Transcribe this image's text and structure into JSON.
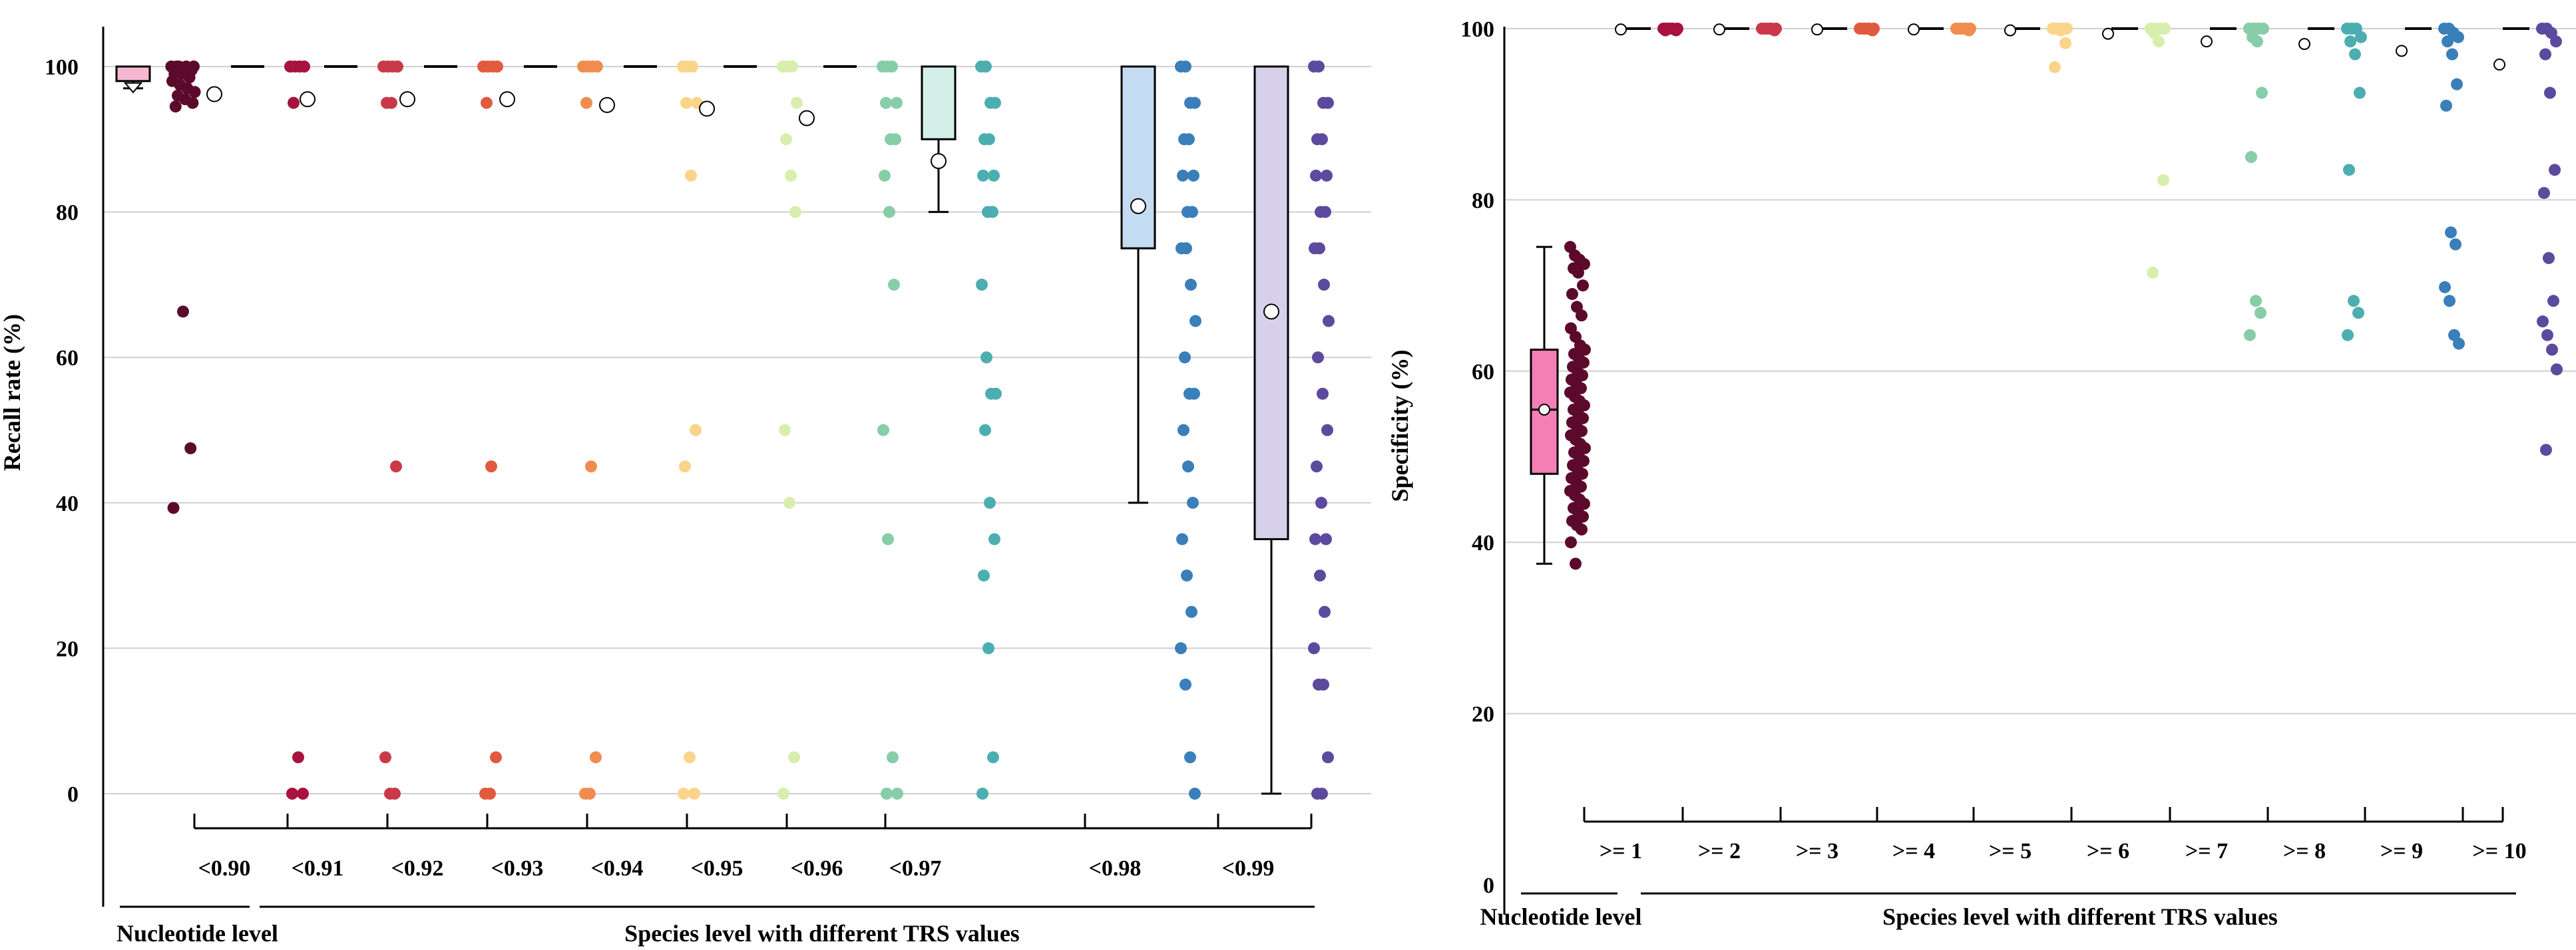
{
  "chart_data": [
    {
      "type": "box",
      "ylabel": "Recall rate (%)",
      "ylim": [
        -15,
        105
      ],
      "yticks": [
        0,
        20,
        40,
        60,
        80,
        100
      ],
      "grid": true,
      "group_labels": [
        "Nucleotide level",
        "Species level with different TRS values"
      ],
      "categories": [
        "Nucleotide level",
        "<0.90",
        "<0.91",
        "<0.92",
        "<0.93",
        "<0.94",
        "<0.95",
        "<0.96",
        "<0.97",
        "<0.98",
        "<0.99"
      ],
      "cat_labels": [
        "<0.90",
        "<0.91",
        "<0.92",
        "<0.93",
        "<0.94",
        "<0.95",
        "<0.96",
        "<0.97",
        "<0.98",
        "<0.99"
      ],
      "colors": [
        "#5c0a2b",
        "#a8123e",
        "#c9394a",
        "#e15a3e",
        "#f08c4e",
        "#fbd48a",
        "#d8eeac",
        "#86cda8",
        "#4caeb0",
        "#3a7fba",
        "#5c4a9e"
      ],
      "box_fill": [
        "#f5b8d2",
        "#ffffff",
        "#ffffff",
        "#ffffff",
        "#ffffff",
        "#ffffff",
        "#ffffff",
        "#ffffff",
        "#d3efe8",
        "#c4dcf1",
        "#d6d0ea"
      ],
      "boxes": [
        {
          "q1": 98,
          "median": 100,
          "q3": 100,
          "whisker_low": 97,
          "whisker_high": 100,
          "mean": 99,
          "mean_at_whisker": true
        },
        {
          "q1": 100,
          "median": 100,
          "q3": 100,
          "whisker_low": 100,
          "whisker_high": 100,
          "mean": 96.2
        },
        {
          "q1": 100,
          "median": 100,
          "q3": 100,
          "whisker_low": 100,
          "whisker_high": 100,
          "mean": 95.5
        },
        {
          "q1": 100,
          "median": 100,
          "q3": 100,
          "whisker_low": 100,
          "whisker_high": 100,
          "mean": 95.5
        },
        {
          "q1": 100,
          "median": 100,
          "q3": 100,
          "whisker_low": 100,
          "whisker_high": 100,
          "mean": 95.5
        },
        {
          "q1": 100,
          "median": 100,
          "q3": 100,
          "whisker_low": 100,
          "whisker_high": 100,
          "mean": 94.7
        },
        {
          "q1": 100,
          "median": 100,
          "q3": 100,
          "whisker_low": 100,
          "whisker_high": 100,
          "mean": 94.2
        },
        {
          "q1": 100,
          "median": 100,
          "q3": 100,
          "whisker_low": 100,
          "whisker_high": 100,
          "mean": 92.9
        },
        {
          "q1": 90,
          "median": 100,
          "q3": 100,
          "whisker_low": 80,
          "whisker_high": 100,
          "mean": 87
        },
        {
          "q1": 75,
          "median": 100,
          "q3": 100,
          "whisker_low": 40,
          "whisker_high": 100,
          "mean": 80.8
        },
        {
          "q1": 35,
          "median": 100,
          "q3": 100,
          "whisker_low": 0,
          "whisker_high": 100,
          "mean": 66.3
        }
      ],
      "points": [
        [
          100,
          100,
          100,
          100,
          100,
          99.5,
          99.5,
          99,
          99,
          98.5,
          98,
          97.5,
          97,
          96.5,
          96,
          95.5,
          95,
          94.5,
          66.3,
          47.5,
          39.3
        ],
        [
          100,
          100,
          100,
          100,
          95,
          5,
          0,
          0
        ],
        [
          100,
          100,
          100,
          100,
          95,
          95,
          45,
          5,
          0,
          0
        ],
        [
          100,
          100,
          100,
          100,
          95,
          45,
          5,
          0,
          0
        ],
        [
          100,
          100,
          100,
          100,
          95,
          45,
          5,
          0,
          0
        ],
        [
          100,
          100,
          100,
          95,
          95,
          85,
          50,
          45,
          5,
          0,
          0
        ],
        [
          100,
          100,
          100,
          95,
          90,
          85,
          80,
          50,
          40,
          5,
          0
        ],
        [
          100,
          100,
          100,
          95,
          95,
          90,
          90,
          85,
          80,
          70,
          50,
          35,
          5,
          0,
          0
        ],
        [
          100,
          100,
          95,
          95,
          90,
          90,
          85,
          85,
          80,
          80,
          70,
          60,
          55,
          55,
          50,
          40,
          35,
          30,
          20,
          5,
          0
        ],
        [
          100,
          100,
          95,
          95,
          90,
          90,
          85,
          85,
          80,
          80,
          75,
          75,
          70,
          65,
          60,
          55,
          55,
          50,
          45,
          40,
          35,
          30,
          25,
          20,
          15,
          5,
          0
        ],
        [
          100,
          100,
          95,
          95,
          90,
          90,
          85,
          85,
          80,
          80,
          75,
          75,
          70,
          65,
          60,
          55,
          50,
          45,
          40,
          35,
          35,
          30,
          25,
          20,
          15,
          15,
          5,
          0,
          0
        ]
      ]
    },
    {
      "type": "box",
      "ylabel": "Specificity (%)",
      "ylim": [
        0,
        100
      ],
      "yticks": [
        0,
        20,
        40,
        60,
        80,
        100
      ],
      "grid": true,
      "group_labels": [
        "Nucleotide level",
        "Species level with different TRS values"
      ],
      "categories": [
        "Nucleotide level",
        ">= 1",
        ">= 2",
        ">= 3",
        ">= 4",
        ">= 5",
        ">= 6",
        ">= 7",
        ">= 8",
        ">= 9",
        ">= 10"
      ],
      "cat_labels": [
        ">= 1",
        ">= 2",
        ">= 3",
        ">= 4",
        ">= 5",
        ">= 6",
        ">= 7",
        ">= 8",
        ">= 9",
        ">= 10"
      ],
      "colors": [
        "#5c0a2b",
        "#a8123e",
        "#c9394a",
        "#e15a3e",
        "#f08c4e",
        "#fbd48a",
        "#d8eeac",
        "#86cda8",
        "#4caeb0",
        "#3a7fba",
        "#5c4a9e"
      ],
      "box_fill": [
        "#f47fb5",
        "#ffffff",
        "#ffffff",
        "#ffffff",
        "#ffffff",
        "#ffffff",
        "#ffffff",
        "#ffffff",
        "#ffffff",
        "#ffffff",
        "#ffffff"
      ],
      "boxes": [
        {
          "q1": 48,
          "median": 55.5,
          "q3": 62.5,
          "whisker_low": 37.5,
          "whisker_high": 74.5,
          "mean": 55.5
        },
        {
          "q1": 100,
          "median": 100,
          "q3": 100,
          "whisker_low": 100,
          "whisker_high": 100,
          "mean": 99.9
        },
        {
          "q1": 100,
          "median": 100,
          "q3": 100,
          "whisker_low": 100,
          "whisker_high": 100,
          "mean": 99.9
        },
        {
          "q1": 100,
          "median": 100,
          "q3": 100,
          "whisker_low": 100,
          "whisker_high": 100,
          "mean": 99.9
        },
        {
          "q1": 100,
          "median": 100,
          "q3": 100,
          "whisker_low": 100,
          "whisker_high": 100,
          "mean": 99.9
        },
        {
          "q1": 100,
          "median": 100,
          "q3": 100,
          "whisker_low": 100,
          "whisker_high": 100,
          "mean": 99.8
        },
        {
          "q1": 100,
          "median": 100,
          "q3": 100,
          "whisker_low": 100,
          "whisker_high": 100,
          "mean": 99.4
        },
        {
          "q1": 100,
          "median": 100,
          "q3": 100,
          "whisker_low": 100,
          "whisker_high": 100,
          "mean": 98.5
        },
        {
          "q1": 100,
          "median": 100,
          "q3": 100,
          "whisker_low": 100,
          "whisker_high": 100,
          "mean": 98.2
        },
        {
          "q1": 100,
          "median": 100,
          "q3": 100,
          "whisker_low": 100,
          "whisker_high": 100,
          "mean": 97.4
        },
        {
          "q1": 100,
          "median": 100,
          "q3": 100,
          "whisker_low": 100,
          "whisker_high": 100,
          "mean": 95.8
        }
      ],
      "points": [
        [
          74.5,
          73.5,
          73,
          72.5,
          72,
          71.5,
          70,
          69,
          67.5,
          66.5,
          65,
          64,
          63,
          62.5,
          62,
          61.5,
          61,
          60.5,
          60,
          59.5,
          59,
          58.5,
          58,
          57.5,
          57,
          56.5,
          56,
          55.5,
          55,
          54.5,
          54,
          53.5,
          53,
          52.5,
          52,
          51.5,
          51,
          50.5,
          50,
          49.5,
          49,
          48.5,
          48,
          47.5,
          47,
          46.5,
          46,
          45.5,
          45,
          44.5,
          44,
          43.5,
          43,
          42.5,
          42,
          41.5,
          40,
          37.5
        ],
        [
          100,
          100,
          100,
          100,
          100,
          100,
          99.8,
          99.8
        ],
        [
          100,
          100,
          100,
          100,
          100,
          100,
          99.8
        ],
        [
          100,
          100,
          100,
          100,
          100,
          100,
          99.8
        ],
        [
          100,
          100,
          100,
          100,
          100,
          100,
          99.8
        ],
        [
          100,
          100,
          100,
          100,
          100,
          99.8,
          98.3,
          95.5
        ],
        [
          100,
          100,
          100,
          100,
          99.5,
          98.5,
          82.3,
          71.5
        ],
        [
          100,
          100,
          100,
          100,
          99,
          98.5,
          92.5,
          85,
          68.2,
          66.8,
          64.2
        ],
        [
          100,
          100,
          100,
          99,
          98.5,
          97,
          92.5,
          83.5,
          68.2,
          66.8,
          64.2
        ],
        [
          100,
          100,
          99.5,
          99,
          98.5,
          97,
          93.5,
          91,
          76.2,
          74.8,
          69.8,
          68.2,
          64.2,
          63.2
        ],
        [
          100,
          100,
          99.5,
          98.5,
          97,
          92.5,
          83.5,
          80.8,
          73.2,
          68.2,
          65.8,
          64.2,
          62.5,
          60.2,
          50.8
        ]
      ]
    }
  ]
}
